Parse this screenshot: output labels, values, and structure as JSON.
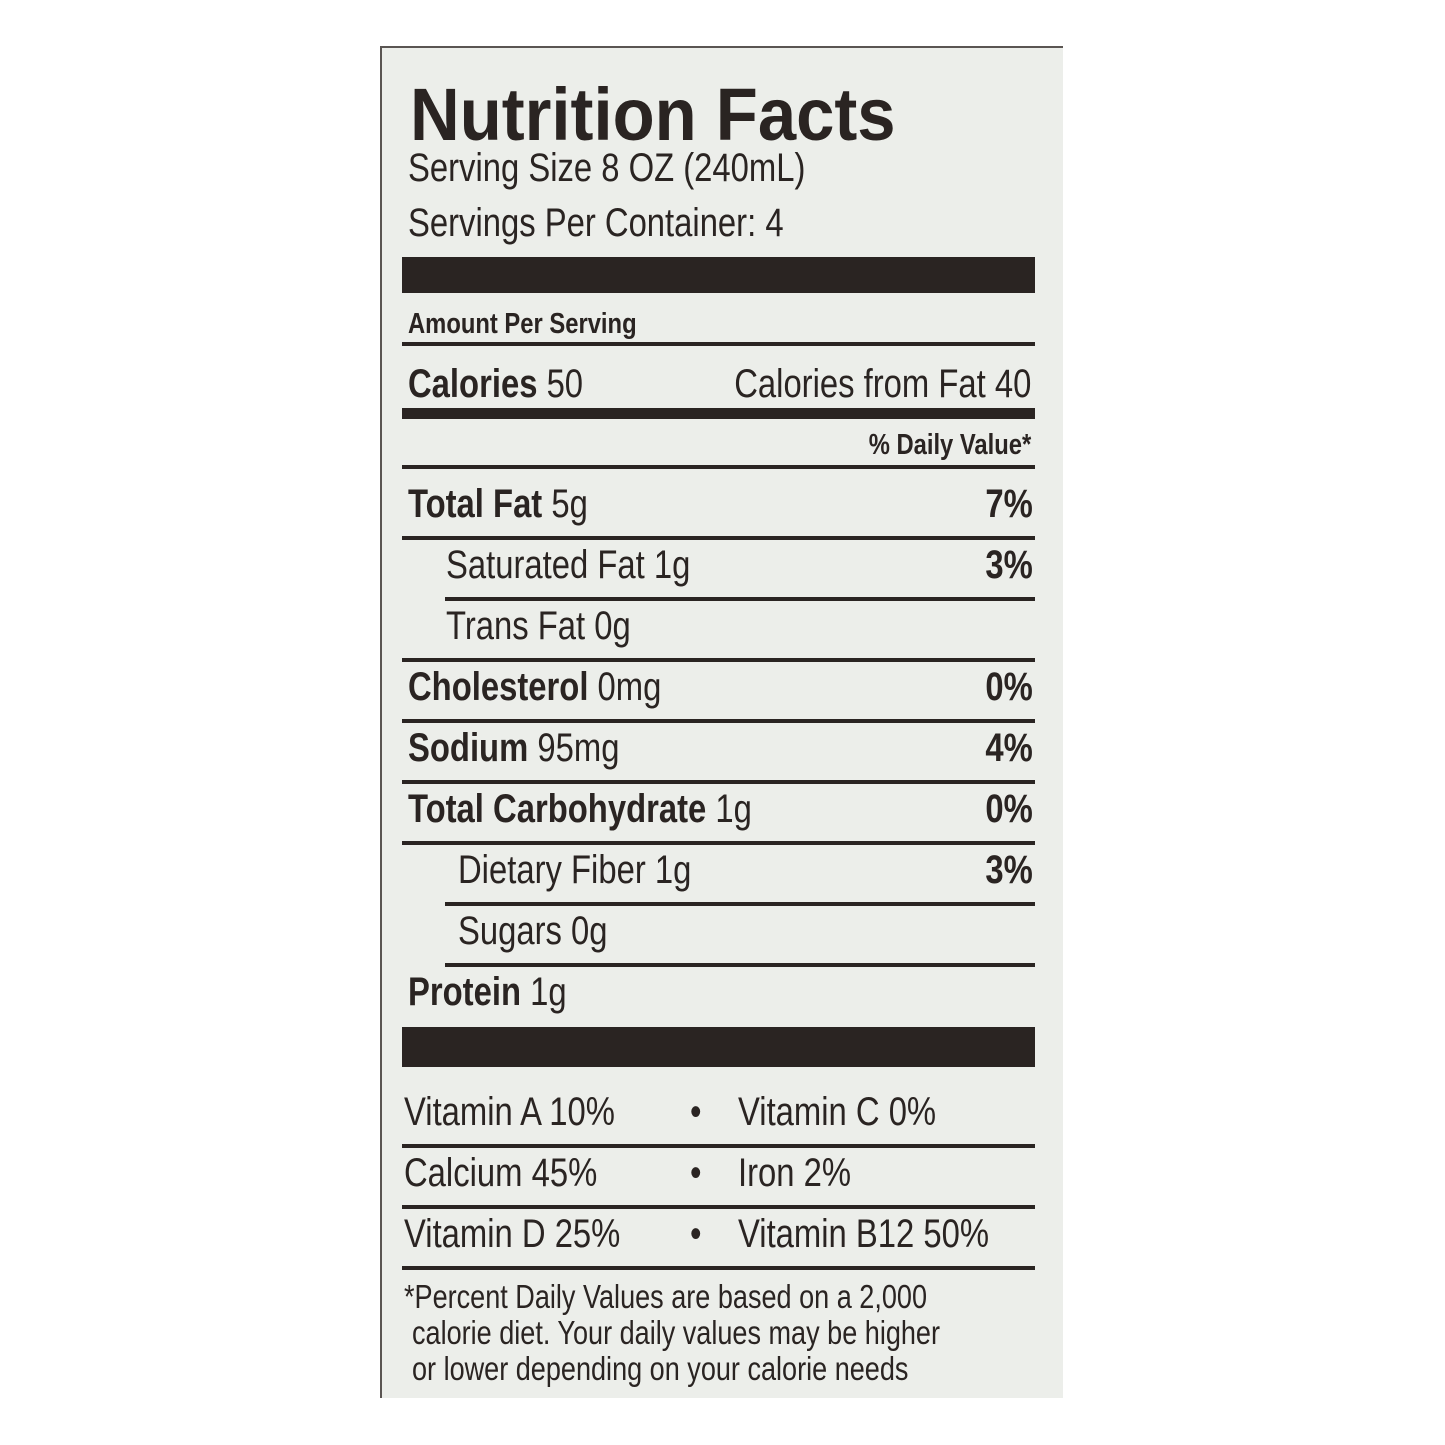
{
  "title": "Nutrition Facts",
  "serving_size": "Serving Size 8 OZ (240mL)",
  "servings_per_container": "Servings Per Container: 4",
  "amount_per_serving": "Amount Per Serving",
  "calories": {
    "label": "Calories",
    "value": "50",
    "from_fat": "Calories from Fat 40"
  },
  "daily_value_header": "% Daily Value*",
  "nutrients": [
    {
      "label": "Total Fat",
      "amount": "5g",
      "dv": "7%",
      "bold": true
    },
    {
      "label": "Saturated Fat",
      "amount": "1g",
      "dv": "3%",
      "bold": false
    },
    {
      "label": "Trans Fat",
      "amount": "0g",
      "dv": "",
      "bold": false
    },
    {
      "label": "Cholesterol",
      "amount": "0mg",
      "dv": "0%",
      "bold": true
    },
    {
      "label": "Sodium",
      "amount": "95mg",
      "dv": "4%",
      "bold": true
    },
    {
      "label": "Total Carbohydrate",
      "amount": "1g",
      "dv": "0%",
      "bold": true
    },
    {
      "label": "Dietary Fiber",
      "amount": "1g",
      "dv": "3%",
      "bold": false
    },
    {
      "label": "Sugars",
      "amount": "0g",
      "dv": "",
      "bold": false
    },
    {
      "label": "Protein",
      "amount": "1g",
      "dv": "",
      "bold": true
    }
  ],
  "vitamins": [
    {
      "left": "Vitamin A 10%",
      "right": "Vitamin C 0%"
    },
    {
      "left": "Calcium 45%",
      "right": "Iron 2%"
    },
    {
      "left": "Vitamin D 25%",
      "right": "Vitamin B12 50%"
    }
  ],
  "bullet": "•",
  "footnote": [
    "*Percent Daily Values are based on a 2,000",
    "calorie diet. Your daily values may be higher",
    "or lower depending on your calorie needs"
  ],
  "colors": {
    "ink": "#2a2422",
    "paper": "#eceeea"
  }
}
